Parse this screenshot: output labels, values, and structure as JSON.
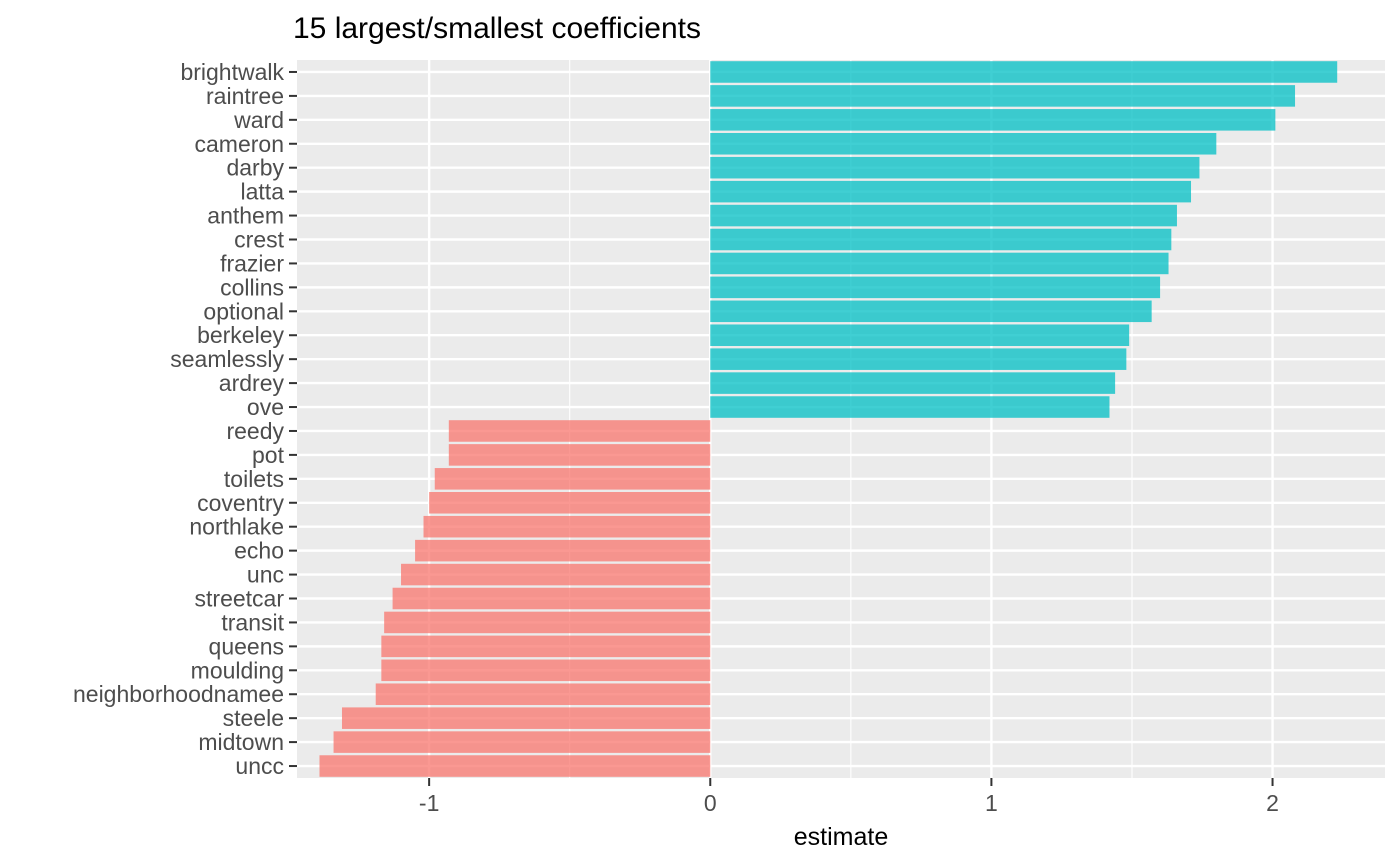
{
  "chart_data": {
    "type": "bar",
    "orientation": "horizontal",
    "title": "15 largest/smallest coefficients",
    "xlabel": "estimate",
    "ylabel": "",
    "xlim": [
      -1.47,
      2.4
    ],
    "xticks": [
      -1,
      0,
      1,
      2
    ],
    "xtick_labels": [
      "-1",
      "0",
      "1",
      "2"
    ],
    "grid": true,
    "legend": "none",
    "colors": {
      "positive": "#00BFC4",
      "negative": "#F8766D",
      "panel": "#EBEBEB",
      "grid": "#FFFFFF"
    },
    "categories": [
      "brightwalk",
      "raintree",
      "ward",
      "cameron",
      "darby",
      "latta",
      "anthem",
      "crest",
      "frazier",
      "collins",
      "optional",
      "berkeley",
      "seamlessly",
      "ardrey",
      "ove",
      "reedy",
      "pot",
      "toilets",
      "coventry",
      "northlake",
      "echo",
      "unc",
      "streetcar",
      "transit",
      "queens",
      "moulding",
      "neighborhoodnamee",
      "steele",
      "midtown",
      "uncc"
    ],
    "values": [
      2.23,
      2.08,
      2.01,
      1.8,
      1.74,
      1.71,
      1.66,
      1.64,
      1.63,
      1.6,
      1.57,
      1.49,
      1.48,
      1.44,
      1.42,
      -0.93,
      -0.93,
      -0.98,
      -1.0,
      -1.02,
      -1.05,
      -1.1,
      -1.13,
      -1.16,
      -1.17,
      -1.17,
      -1.19,
      -1.31,
      -1.34,
      -1.39
    ]
  }
}
